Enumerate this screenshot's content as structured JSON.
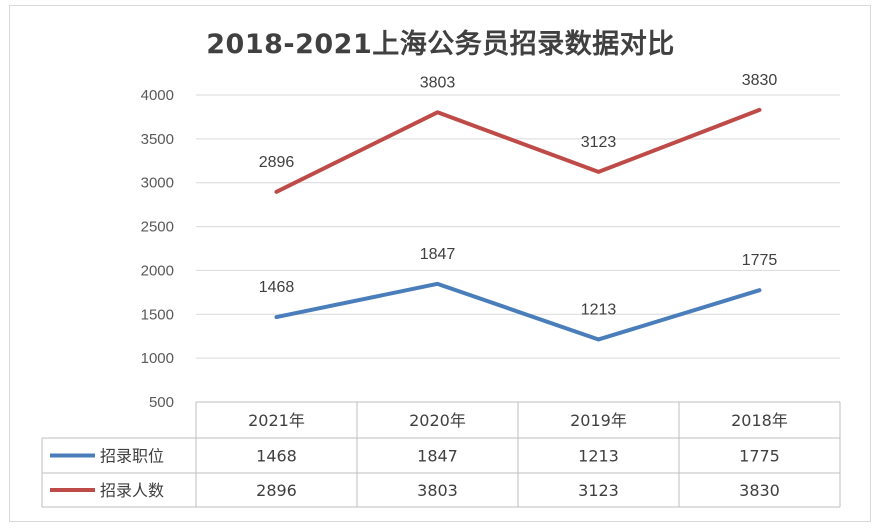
{
  "chart_data": {
    "type": "line",
    "title": "2018-2021上海公务员招录数据对比",
    "categories": [
      "2021年",
      "2020年",
      "2019年",
      "2018年"
    ],
    "series": [
      {
        "name": "招录职位",
        "values": [
          1468,
          1847,
          1213,
          1775
        ],
        "color": "#4a7ebb"
      },
      {
        "name": "招录人数",
        "values": [
          2896,
          3803,
          3123,
          3830
        ],
        "color": "#be4b48"
      }
    ],
    "ylim": [
      500,
      4000
    ],
    "yticks": [
      500,
      1000,
      1500,
      2000,
      2500,
      3000,
      3500,
      4000
    ],
    "grid": true,
    "legend": "data-table"
  }
}
